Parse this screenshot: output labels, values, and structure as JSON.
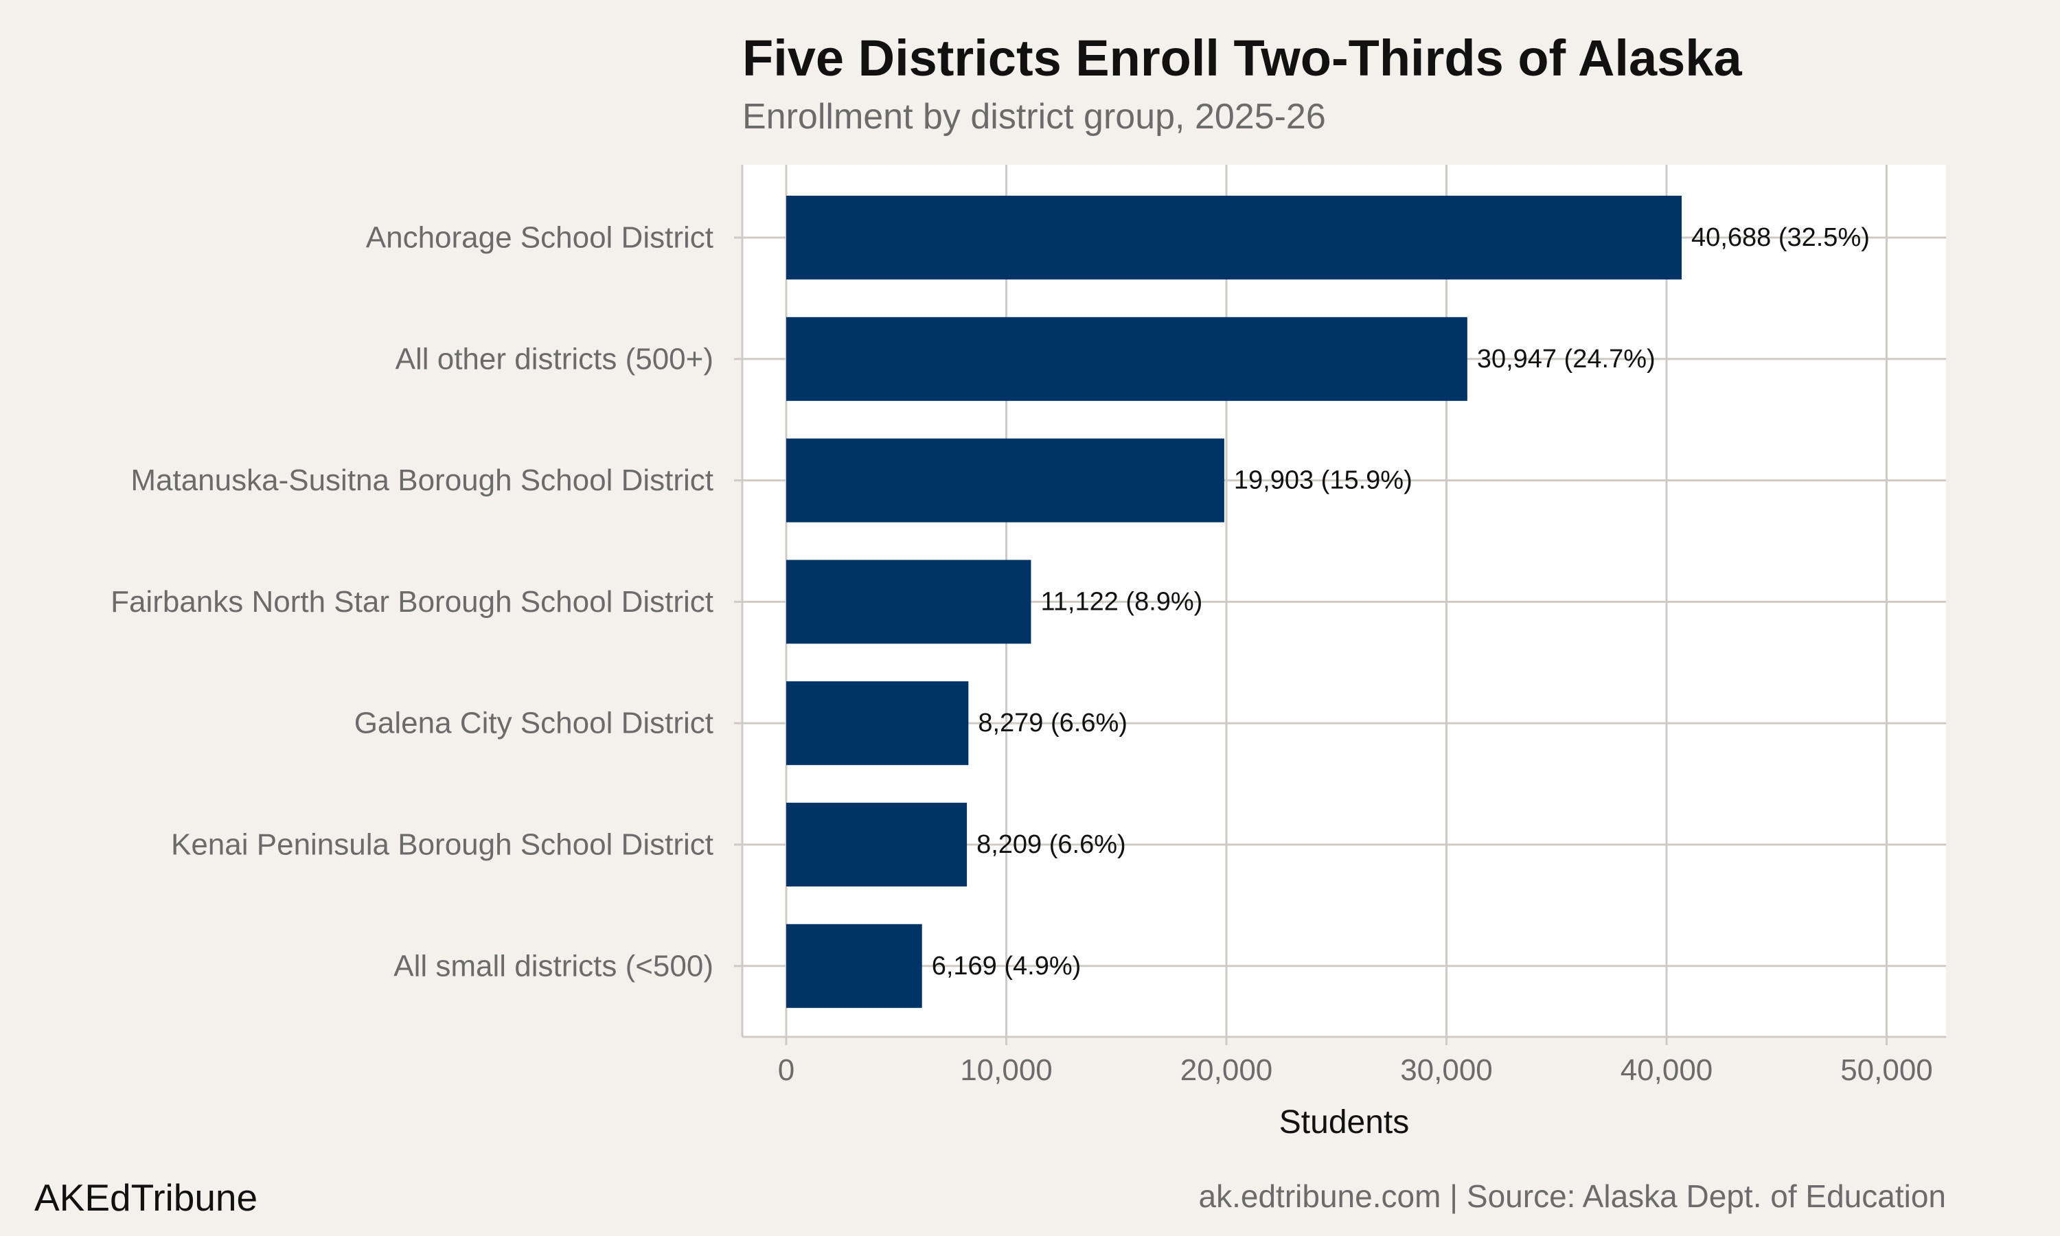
{
  "header": {
    "title": "Five Districts Enroll Two-Thirds of Alaska",
    "subtitle": "Enrollment by district group, 2025-26"
  },
  "footer": {
    "brand": "AKEdTribune",
    "source": "ak.edtribune.com | Source: Alaska Dept. of Education"
  },
  "colors": {
    "bar": "#003366",
    "panel": "#ffffff",
    "background": "#f4f1ec",
    "grid": "#cfcbc4"
  },
  "chart_data": {
    "type": "bar",
    "orientation": "horizontal",
    "title": "Five Districts Enroll Two-Thirds of Alaska",
    "subtitle": "Enrollment by district group, 2025-26",
    "xlabel": "Students",
    "ylabel": "",
    "xlim": [
      0,
      52000
    ],
    "xticks": [
      0,
      10000,
      20000,
      30000,
      40000,
      50000
    ],
    "xtick_labels": [
      "0",
      "10,000",
      "20,000",
      "30,000",
      "40,000",
      "50,000"
    ],
    "grid": true,
    "categories": [
      "Anchorage School District",
      "All other districts (500+)",
      "Matanuska-Susitna Borough School District",
      "Fairbanks North Star Borough School District",
      "Galena City School District",
      "Kenai Peninsula Borough School District",
      "All small districts (<500)"
    ],
    "values": [
      40688,
      30947,
      19903,
      11122,
      8279,
      8209,
      6169
    ],
    "labels": [
      "40,688 (32.5%)",
      "30,947 (24.7%)",
      "19,903 (15.9%)",
      "11,122 (8.9%)",
      "8,279 (6.6%)",
      "8,209 (6.6%)",
      "6,169 (4.9%)"
    ]
  }
}
